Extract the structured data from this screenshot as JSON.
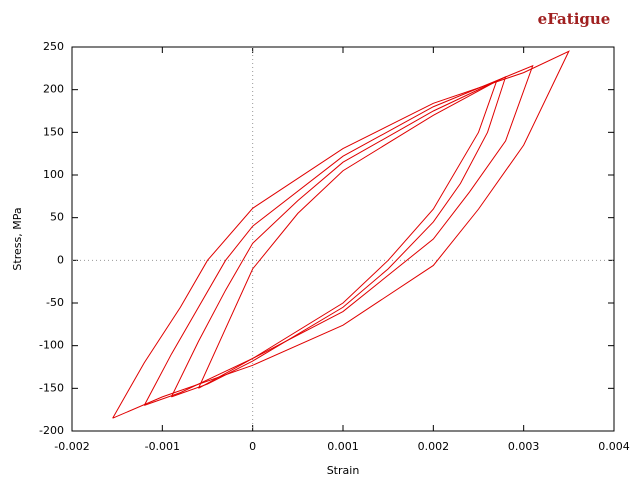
{
  "chart_data": {
    "type": "line",
    "logo": "eFatigue",
    "xlabel": "Strain",
    "ylabel": "Stress, MPa",
    "xlim": [
      -0.002,
      0.004
    ],
    "xticks": [
      -0.002,
      -0.001,
      0,
      0.001,
      0.002,
      0.003,
      0.004
    ],
    "ylim": [
      -200,
      250
    ],
    "yticks": [
      -200,
      -150,
      -100,
      -50,
      0,
      50,
      100,
      150,
      200,
      250
    ],
    "zero_axes": true,
    "color": "#e00000",
    "series": [
      {
        "x": [
          -0.00155,
          -0.0012,
          -0.0008,
          -0.0005,
          0,
          0.001,
          0.002,
          0.003,
          0.0035,
          0.003,
          0.0025,
          0.002,
          0.001,
          0,
          -0.001,
          -0.00155
        ],
        "values": [
          -185,
          -120,
          -55,
          0,
          61,
          131,
          184,
          220,
          245,
          135,
          60,
          -6,
          -76,
          -123,
          -160,
          -185
        ]
      },
      {
        "x": [
          -0.0012,
          -0.0009,
          -0.0006,
          -0.0003,
          0,
          0.001,
          0.002,
          0.0031,
          0.0028,
          0.0024,
          0.002,
          0.001,
          0,
          -0.0008,
          -0.0012
        ],
        "values": [
          -170,
          -110,
          -55,
          0,
          40,
          122,
          180,
          228,
          140,
          80,
          25,
          -60,
          -115,
          -155,
          -170
        ]
      },
      {
        "x": [
          -0.0009,
          -0.0006,
          -0.0003,
          0,
          0.0005,
          0.001,
          0.002,
          0.0028,
          0.0026,
          0.0023,
          0.002,
          0.0015,
          0.001,
          0,
          -0.0005,
          -0.0009
        ],
        "values": [
          -160,
          -95,
          -35,
          20,
          70,
          115,
          175,
          215,
          150,
          90,
          45,
          -10,
          -55,
          -118,
          -145,
          -160
        ]
      },
      {
        "x": [
          -0.0006,
          -0.0003,
          0,
          0.0005,
          0.001,
          0.002,
          0.0027,
          0.0025,
          0.002,
          0.0015,
          0.001,
          0,
          -0.0006
        ],
        "values": [
          -150,
          -80,
          -10,
          55,
          105,
          170,
          210,
          150,
          60,
          0,
          -50,
          -115,
          -150
        ]
      }
    ]
  }
}
